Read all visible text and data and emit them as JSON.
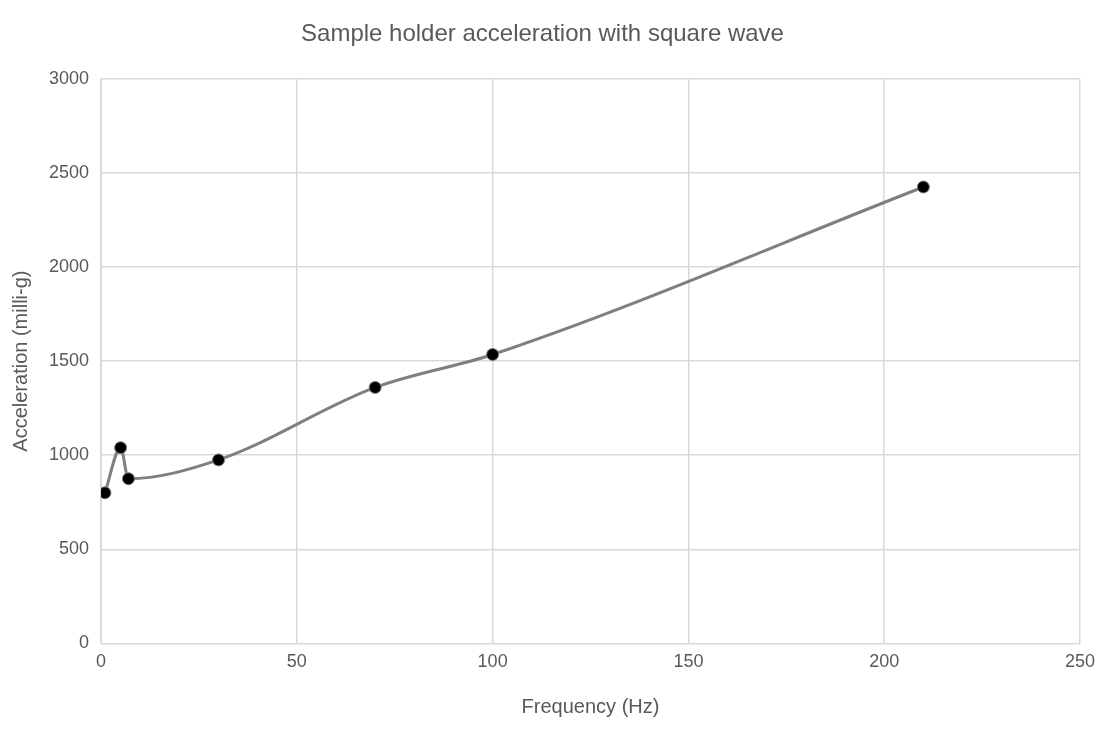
{
  "chart_data": {
    "type": "line",
    "title": "Sample holder acceleration with square wave",
    "xlabel": "Frequency (Hz)",
    "ylabel": "Acceleration (milli-g)",
    "x": [
      1,
      5,
      7,
      30,
      70,
      100,
      210
    ],
    "series": [
      {
        "color": "#7f7f7f",
        "values": [
          800,
          1040,
          875,
          975,
          1360,
          1535,
          2425
        ]
      }
    ],
    "xlim": [
      0,
      250
    ],
    "xticks": [
      0,
      50,
      100,
      150,
      200,
      250
    ],
    "ylim": [
      0,
      3000
    ],
    "yticks": [
      0,
      500,
      1000,
      1500,
      2000,
      2500,
      3000
    ],
    "grid": true,
    "legend": false,
    "marker": "circle",
    "line_style": "solid"
  }
}
